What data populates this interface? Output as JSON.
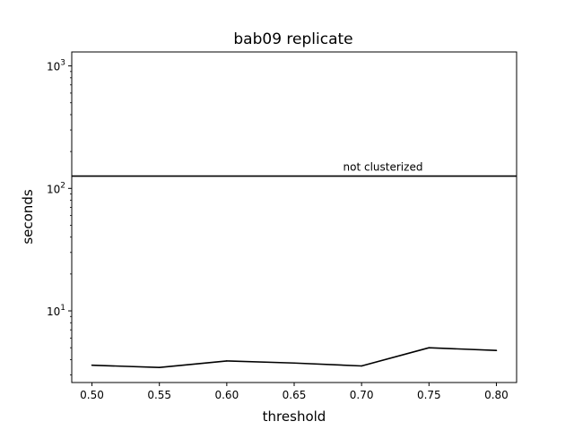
{
  "chart_data": {
    "type": "line",
    "title": "bab09 replicate",
    "xlabel": "threshold",
    "ylabel": "seconds",
    "xscale": "linear",
    "yscale": "log",
    "xlim": [
      0.485,
      0.815
    ],
    "ylim": [
      2.6,
      1300
    ],
    "grid": false,
    "x_ticks": [
      0.5,
      0.55,
      0.6,
      0.65,
      0.7,
      0.75,
      0.8
    ],
    "x_tick_labels": [
      "0.50",
      "0.55",
      "0.60",
      "0.65",
      "0.70",
      "0.75",
      "0.80"
    ],
    "y_ticks": [
      {
        "base": "10",
        "exp": "1",
        "value": 10
      },
      {
        "base": "10",
        "exp": "2",
        "value": 100
      },
      {
        "base": "10",
        "exp": "3",
        "value": 1000
      }
    ],
    "series": [
      {
        "color": "#000000",
        "x": [
          0.5,
          0.55,
          0.6,
          0.65,
          0.7,
          0.75,
          0.8
        ],
        "y": [
          3.6,
          3.45,
          3.9,
          3.75,
          3.55,
          5.0,
          4.75
        ]
      }
    ],
    "reference_lines": [
      {
        "label": "not clusterized",
        "y": 126,
        "color": "#000000"
      }
    ]
  }
}
